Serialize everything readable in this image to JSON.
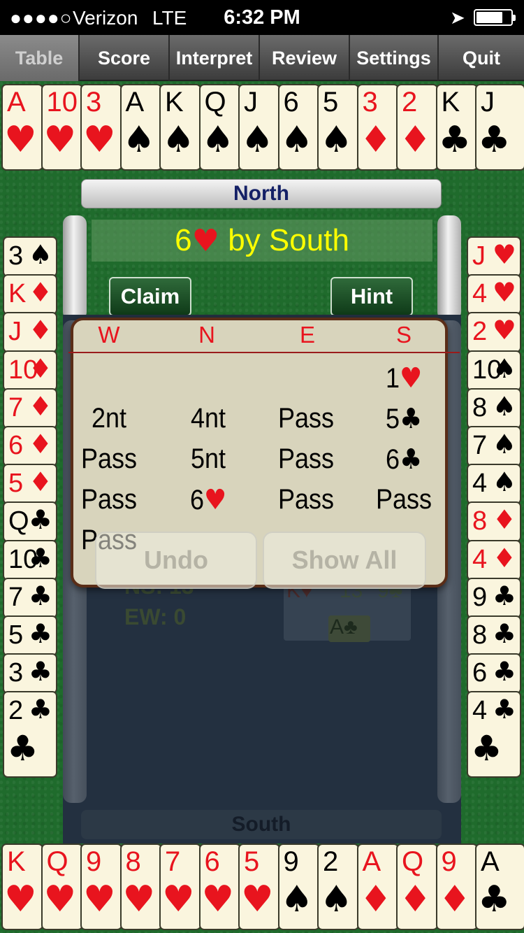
{
  "status_bar": {
    "signal": "●●●●○",
    "carrier": "Verizon",
    "network": "LTE",
    "time": "6:32 PM",
    "battery_level": 0.78
  },
  "tabs": [
    {
      "label": "Table",
      "active": true
    },
    {
      "label": "Score",
      "active": false
    },
    {
      "label": "Interpret",
      "active": false
    },
    {
      "label": "Review",
      "active": false
    },
    {
      "label": "Settings",
      "active": false
    },
    {
      "label": "Quit",
      "active": false
    }
  ],
  "north_hand": [
    {
      "rank": "A",
      "suit": "♥",
      "color": "red"
    },
    {
      "rank": "10",
      "suit": "♥",
      "color": "red"
    },
    {
      "rank": "3",
      "suit": "♥",
      "color": "red"
    },
    {
      "rank": "A",
      "suit": "♠",
      "color": "black"
    },
    {
      "rank": "K",
      "suit": "♠",
      "color": "black"
    },
    {
      "rank": "Q",
      "suit": "♠",
      "color": "black"
    },
    {
      "rank": "J",
      "suit": "♠",
      "color": "black"
    },
    {
      "rank": "6",
      "suit": "♠",
      "color": "black"
    },
    {
      "rank": "5",
      "suit": "♠",
      "color": "black"
    },
    {
      "rank": "3",
      "suit": "♦",
      "color": "red"
    },
    {
      "rank": "2",
      "suit": "♦",
      "color": "red"
    },
    {
      "rank": "K",
      "suit": "♣",
      "color": "black"
    },
    {
      "rank": "J",
      "suit": "♣",
      "color": "black"
    }
  ],
  "west_hand": [
    {
      "rank": "3",
      "suit": "♠",
      "color": "black"
    },
    {
      "rank": "K",
      "suit": "♦",
      "color": "red"
    },
    {
      "rank": "J",
      "suit": "♦",
      "color": "red"
    },
    {
      "rank": "10",
      "suit": "♦",
      "color": "red"
    },
    {
      "rank": "7",
      "suit": "♦",
      "color": "red"
    },
    {
      "rank": "6",
      "suit": "♦",
      "color": "red"
    },
    {
      "rank": "5",
      "suit": "♦",
      "color": "red"
    },
    {
      "rank": "Q",
      "suit": "♣",
      "color": "black"
    },
    {
      "rank": "10",
      "suit": "♣",
      "color": "black"
    },
    {
      "rank": "7",
      "suit": "♣",
      "color": "black"
    },
    {
      "rank": "5",
      "suit": "♣",
      "color": "black"
    },
    {
      "rank": "3",
      "suit": "♣",
      "color": "black"
    },
    {
      "rank": "2",
      "suit": "♣",
      "color": "black"
    }
  ],
  "east_hand": [
    {
      "rank": "J",
      "suit": "♥",
      "color": "red"
    },
    {
      "rank": "4",
      "suit": "♥",
      "color": "red"
    },
    {
      "rank": "2",
      "suit": "♥",
      "color": "red"
    },
    {
      "rank": "10",
      "suit": "♠",
      "color": "black"
    },
    {
      "rank": "8",
      "suit": "♠",
      "color": "black"
    },
    {
      "rank": "7",
      "suit": "♠",
      "color": "black"
    },
    {
      "rank": "4",
      "suit": "♠",
      "color": "black"
    },
    {
      "rank": "8",
      "suit": "♦",
      "color": "red"
    },
    {
      "rank": "4",
      "suit": "♦",
      "color": "red"
    },
    {
      "rank": "9",
      "suit": "♣",
      "color": "black"
    },
    {
      "rank": "8",
      "suit": "♣",
      "color": "black"
    },
    {
      "rank": "6",
      "suit": "♣",
      "color": "black"
    },
    {
      "rank": "4",
      "suit": "♣",
      "color": "black"
    }
  ],
  "south_hand": [
    {
      "rank": "K",
      "suit": "♥",
      "color": "red"
    },
    {
      "rank": "Q",
      "suit": "♥",
      "color": "red"
    },
    {
      "rank": "9",
      "suit": "♥",
      "color": "red"
    },
    {
      "rank": "8",
      "suit": "♥",
      "color": "red"
    },
    {
      "rank": "7",
      "suit": "♥",
      "color": "red"
    },
    {
      "rank": "6",
      "suit": "♥",
      "color": "red"
    },
    {
      "rank": "5",
      "suit": "♥",
      "color": "red"
    },
    {
      "rank": "9",
      "suit": "♠",
      "color": "black"
    },
    {
      "rank": "2",
      "suit": "♠",
      "color": "black"
    },
    {
      "rank": "A",
      "suit": "♦",
      "color": "red"
    },
    {
      "rank": "Q",
      "suit": "♦",
      "color": "red"
    },
    {
      "rank": "9",
      "suit": "♦",
      "color": "red"
    },
    {
      "rank": "A",
      "suit": "♣",
      "color": "black"
    }
  ],
  "table": {
    "north_label": "North",
    "south_label": "South",
    "contract_level": "6",
    "contract_suit": "♥",
    "contract_rest": " by South",
    "claim_label": "Claim",
    "hint_label": "Hint",
    "ew_label": "EW:",
    "ew_value": "0",
    "ns_partial": "NS:",
    "ns_value": "13",
    "played_cards": [
      "K♥",
      "13",
      "9♣",
      "A♣"
    ]
  },
  "bidding": {
    "headers": [
      "W",
      "N",
      "E",
      "S"
    ],
    "rows": [
      [
        "",
        "",
        "",
        "1♥"
      ],
      [
        "2nt",
        "4nt",
        "Pass",
        "5♣"
      ],
      [
        "Pass",
        "5nt",
        "Pass",
        "6♣"
      ],
      [
        "Pass",
        "6♥",
        "Pass",
        "Pass"
      ],
      [
        "Pass",
        "",
        "",
        ""
      ]
    ],
    "undo_label": "Undo",
    "show_all_label": "Show All"
  },
  "colors": {
    "felt": "#1f6b2c",
    "card_face": "#faf5de",
    "red_suit": "#e8141e",
    "contract_text": "#ffff00",
    "north_text": "#142066"
  }
}
